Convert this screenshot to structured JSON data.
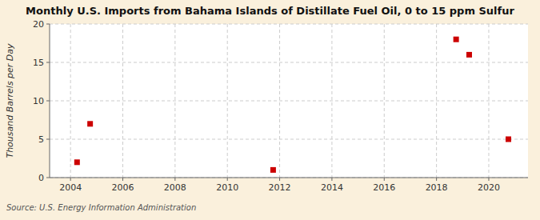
{
  "chart_data": {
    "type": "scatter",
    "title": "Monthly U.S. Imports from Bahama Islands of Distillate Fuel Oil, 0 to 15 ppm Sulfur",
    "ylabel": "Thousand Barrels per Day",
    "source": "Source: U.S. Energy Information Administration",
    "x": [
      2004.25,
      2004.75,
      2011.75,
      2018.75,
      2019.25,
      2020.75
    ],
    "values": [
      2.0,
      7.0,
      1.0,
      18.0,
      16.0,
      5.0
    ],
    "color": "#cc0000",
    "marker": "square",
    "xlim": [
      2003.2,
      2021.5
    ],
    "ylim": [
      0,
      20
    ],
    "xticks": [
      2004,
      2006,
      2008,
      2010,
      2012,
      2014,
      2016,
      2018,
      2020
    ],
    "yticks": [
      0,
      5,
      10,
      15,
      20
    ],
    "grid": true
  }
}
